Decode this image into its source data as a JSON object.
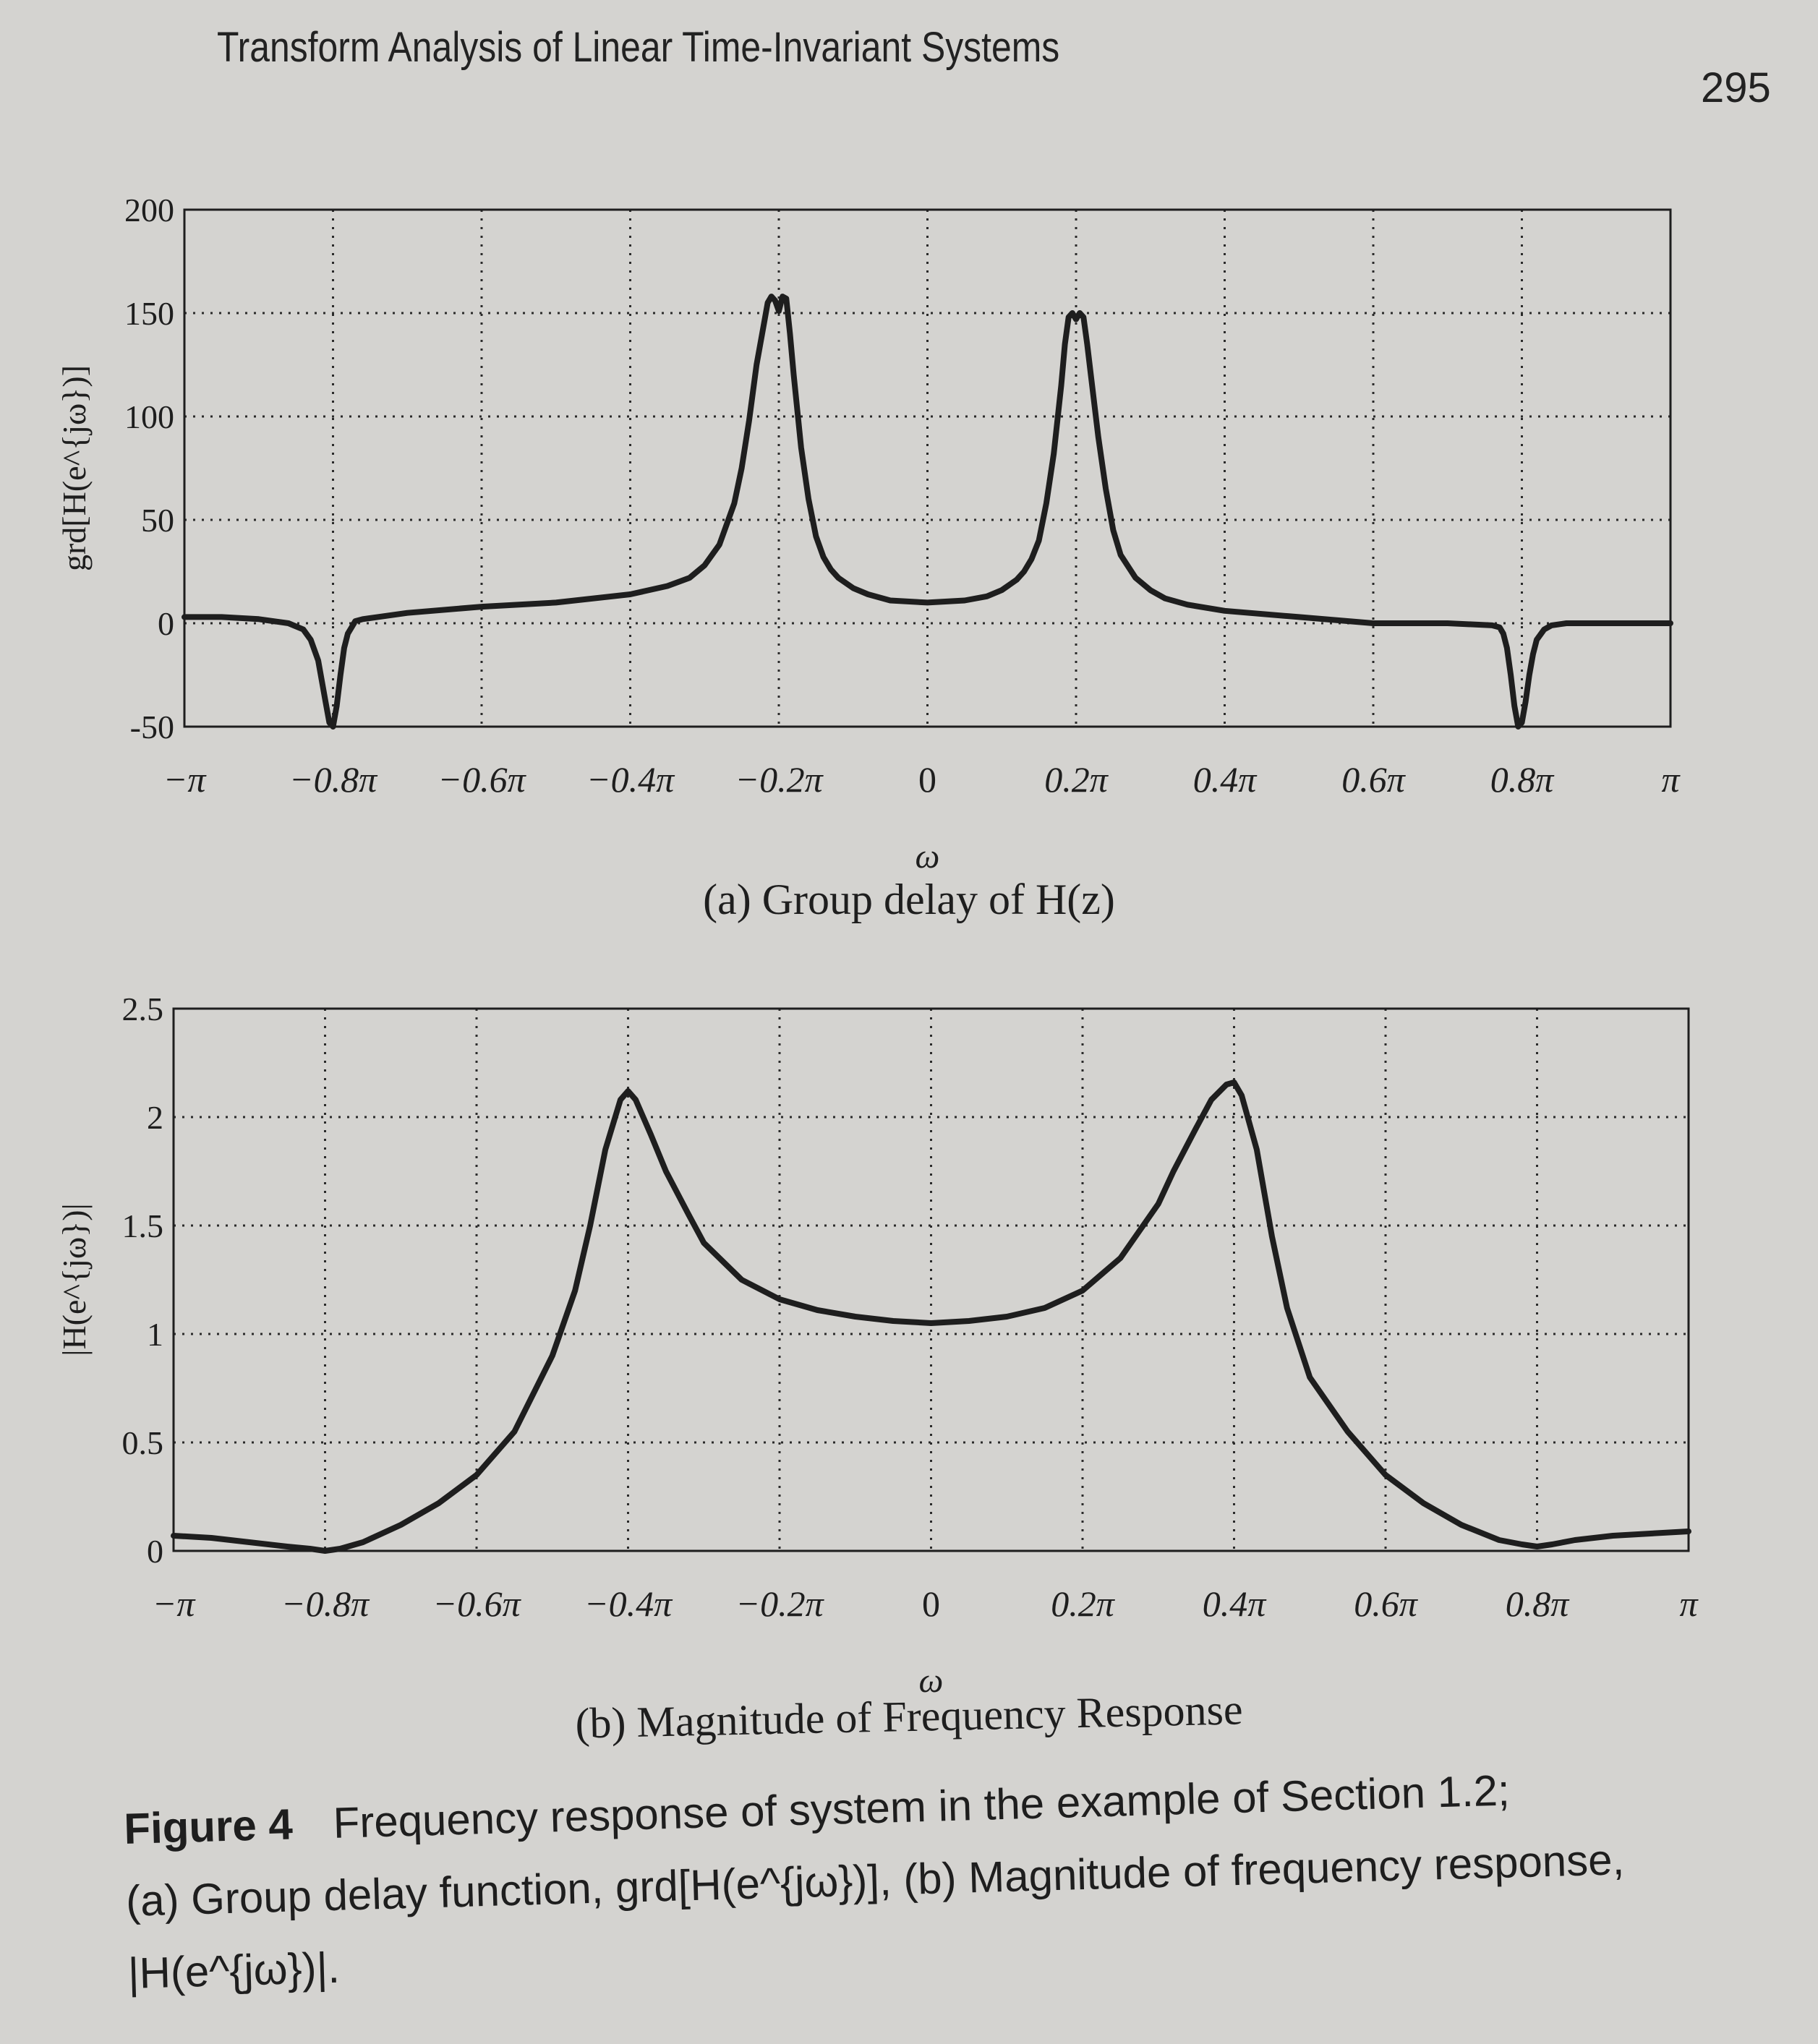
{
  "header": {
    "title": "Transform Analysis of Linear Time-Invariant Systems",
    "page_number": "295"
  },
  "chart_data": [
    {
      "type": "line",
      "xlabel": "ω",
      "ylabel": "grd[H(e^{jω})]",
      "ylim": [
        -50,
        200
      ],
      "yticks": [
        "-50",
        "0",
        "50",
        "100",
        "150",
        "200"
      ],
      "xticks": [
        "−π",
        "−0.8π",
        "−0.6π",
        "−0.4π",
        "−0.2π",
        "0",
        "0.2π",
        "0.4π",
        "0.6π",
        "0.8π",
        "π"
      ],
      "xlim": [
        -1,
        1
      ],
      "grid": true,
      "caption": "(a) Group delay of H(z)",
      "series": [
        {
          "x": [
            -1,
            -0.95,
            -0.9,
            -0.86,
            -0.84,
            -0.83,
            -0.82,
            -0.815,
            -0.81,
            -0.805,
            -0.8,
            -0.795,
            -0.79,
            -0.785,
            -0.78,
            -0.775,
            -0.77,
            -0.76,
            -0.74,
            -0.7,
            -0.6,
            -0.5,
            -0.4,
            -0.35,
            -0.32,
            -0.3,
            -0.28,
            -0.26,
            -0.25,
            -0.24,
            -0.23,
            -0.22,
            -0.215,
            -0.21,
            -0.205,
            -0.2,
            -0.195,
            -0.19,
            -0.185,
            -0.18,
            -0.17,
            -0.16,
            -0.15,
            -0.14,
            -0.13,
            -0.12,
            -0.1,
            -0.08,
            -0.05,
            0,
            0.05,
            0.08,
            0.1,
            0.12,
            0.13,
            0.14,
            0.15,
            0.16,
            0.17,
            0.18,
            0.185,
            0.19,
            0.195,
            0.2,
            0.205,
            0.21,
            0.215,
            0.22,
            0.23,
            0.24,
            0.25,
            0.26,
            0.28,
            0.3,
            0.32,
            0.35,
            0.4,
            0.5,
            0.6,
            0.7,
            0.76,
            0.77,
            0.775,
            0.78,
            0.785,
            0.79,
            0.795,
            0.8,
            0.805,
            0.81,
            0.815,
            0.82,
            0.83,
            0.84,
            0.86,
            0.9,
            0.95,
            1
          ],
          "y": [
            3,
            3,
            2,
            0,
            -3,
            -8,
            -18,
            -28,
            -38,
            -48,
            -50,
            -40,
            -25,
            -12,
            -5,
            -2,
            1,
            2,
            3,
            5,
            8,
            10,
            14,
            18,
            22,
            28,
            38,
            58,
            75,
            98,
            125,
            145,
            155,
            158,
            156,
            151,
            158,
            157,
            140,
            120,
            85,
            60,
            42,
            32,
            26,
            22,
            17,
            14,
            11,
            10,
            11,
            13,
            16,
            21,
            25,
            31,
            40,
            58,
            82,
            115,
            135,
            148,
            150,
            147,
            150,
            148,
            135,
            120,
            90,
            65,
            45,
            33,
            22,
            16,
            12,
            9,
            6,
            3,
            0,
            0,
            -1,
            -2,
            -5,
            -12,
            -25,
            -40,
            -50,
            -48,
            -38,
            -25,
            -15,
            -8,
            -3,
            -1,
            0,
            0,
            0,
            0
          ]
        }
      ]
    },
    {
      "type": "line",
      "xlabel": "ω",
      "ylabel": "|H(e^{jω})|",
      "ylim": [
        0,
        2.5
      ],
      "yticks": [
        "0",
        "0.5",
        "1",
        "1.5",
        "2",
        "2.5"
      ],
      "xticks": [
        "−π",
        "−0.8π",
        "−0.6π",
        "−0.4π",
        "−0.2π",
        "0",
        "0.2π",
        "0.4π",
        "0.6π",
        "0.8π",
        "π"
      ],
      "xlim": [
        -1,
        1
      ],
      "grid": true,
      "caption": "(b) Magnitude of Frequency Response",
      "series": [
        {
          "x": [
            -1,
            -0.95,
            -0.9,
            -0.85,
            -0.82,
            -0.8,
            -0.78,
            -0.75,
            -0.7,
            -0.65,
            -0.6,
            -0.55,
            -0.5,
            -0.47,
            -0.45,
            -0.43,
            -0.41,
            -0.4,
            -0.39,
            -0.37,
            -0.35,
            -0.32,
            -0.3,
            -0.25,
            -0.2,
            -0.15,
            -0.1,
            -0.05,
            0,
            0.05,
            0.1,
            0.15,
            0.2,
            0.25,
            0.3,
            0.32,
            0.35,
            0.37,
            0.39,
            0.4,
            0.41,
            0.43,
            0.45,
            0.47,
            0.5,
            0.55,
            0.6,
            0.65,
            0.7,
            0.75,
            0.78,
            0.8,
            0.82,
            0.85,
            0.9,
            0.95,
            1
          ],
          "y": [
            0.07,
            0.06,
            0.04,
            0.02,
            0.01,
            0,
            0.01,
            0.04,
            0.12,
            0.22,
            0.35,
            0.55,
            0.9,
            1.2,
            1.5,
            1.85,
            2.08,
            2.12,
            2.08,
            1.92,
            1.75,
            1.55,
            1.42,
            1.25,
            1.16,
            1.11,
            1.08,
            1.06,
            1.05,
            1.06,
            1.08,
            1.12,
            1.2,
            1.35,
            1.6,
            1.75,
            1.95,
            2.08,
            2.15,
            2.16,
            2.1,
            1.85,
            1.45,
            1.12,
            0.8,
            0.55,
            0.35,
            0.22,
            0.12,
            0.05,
            0.03,
            0.02,
            0.03,
            0.05,
            0.07,
            0.08,
            0.09
          ]
        }
      ]
    }
  ],
  "figure_caption": {
    "label": "Figure 4",
    "line1": "Frequency response of system in the example of Section 1.2;",
    "line2": "(a) Group delay function, grd[H(e^{jω})], (b) Magnitude of frequency response,",
    "line3": "|H(e^{jω})|."
  },
  "colors": {
    "background": "#d4d3d0",
    "ink": "#1e1e1e",
    "grid": "#2a2a2a"
  }
}
